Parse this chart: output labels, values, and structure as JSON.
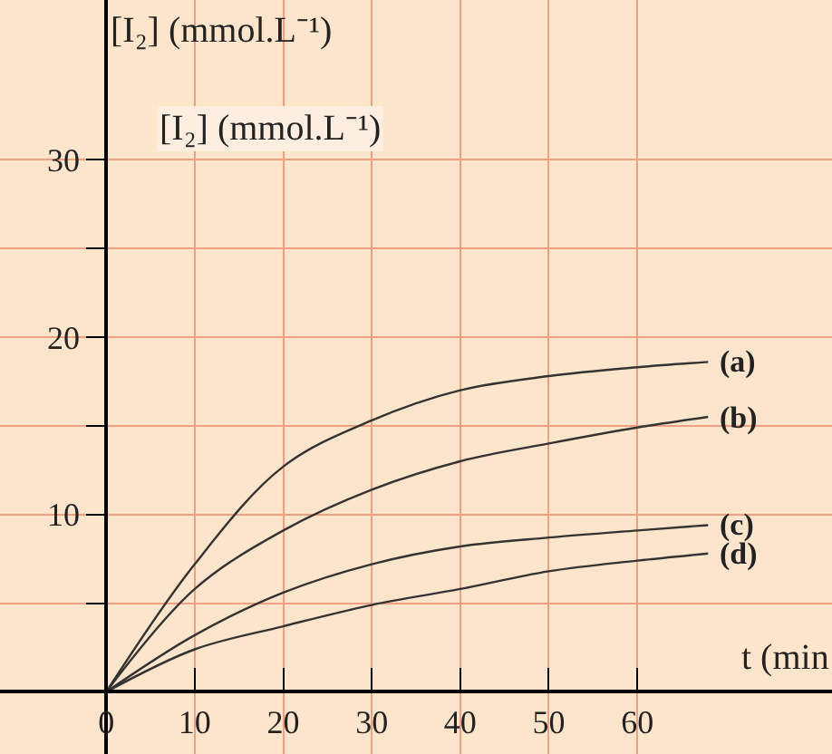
{
  "chart_data": {
    "type": "line",
    "xlabel": "t (min",
    "ylabel": "[I₂] (mmol.L⁻¹)",
    "annotations": [
      "[I₂] (mmol.L⁻¹)"
    ],
    "x": [
      0,
      10,
      20,
      30,
      40,
      50,
      60,
      68
    ],
    "series": [
      {
        "name": "(a)",
        "color": "#333333",
        "values": [
          0,
          7.2,
          12.7,
          15.3,
          17.0,
          17.8,
          18.3,
          18.6
        ]
      },
      {
        "name": "(b)",
        "color": "#333333",
        "values": [
          0,
          5.8,
          9.1,
          11.4,
          13.0,
          14.0,
          14.9,
          15.5
        ]
      },
      {
        "name": "(c)",
        "color": "#333333",
        "values": [
          0,
          3.2,
          5.6,
          7.2,
          8.2,
          8.7,
          9.1,
          9.4
        ]
      },
      {
        "name": "(d)",
        "color": "#333333",
        "values": [
          0,
          2.4,
          3.7,
          4.9,
          5.8,
          6.8,
          7.4,
          7.8
        ]
      }
    ],
    "xlim": [
      -12,
      82
    ],
    "ylim": [
      -3.5,
      39
    ],
    "xticks": [
      0,
      10,
      20,
      30,
      40,
      50,
      60
    ],
    "yticks": [
      {
        "value": 5,
        "label": null
      },
      10,
      {
        "value": 15,
        "label": null
      },
      20,
      {
        "value": 25,
        "label": null
      },
      30
    ],
    "grid": true,
    "legend": false,
    "marker": "none",
    "line_style": "solid"
  }
}
